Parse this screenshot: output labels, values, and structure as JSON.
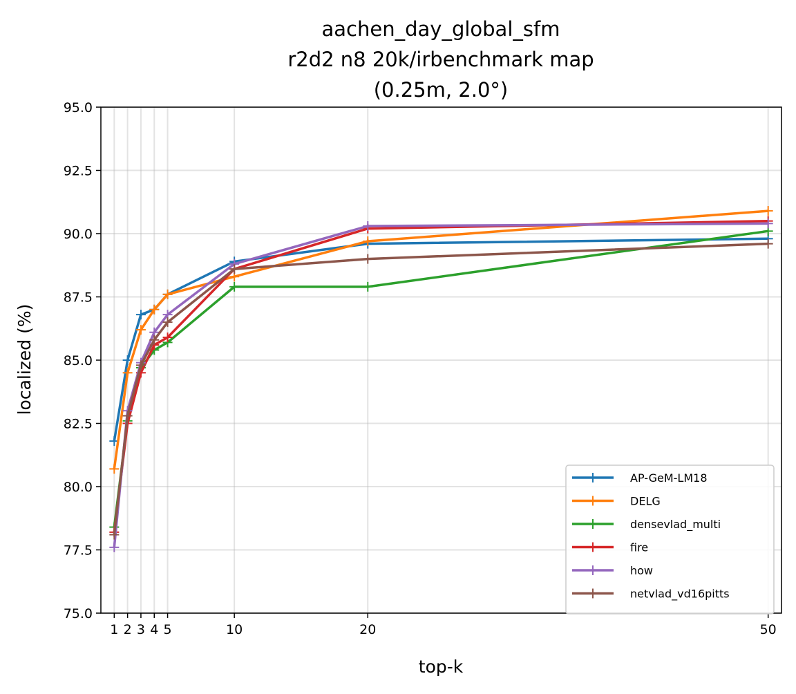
{
  "chart_data": {
    "type": "line",
    "title_lines": [
      "aachen_day_global_sfm",
      "r2d2 n8 20k/irbenchmark map",
      "(0.25m, 2.0°)"
    ],
    "xlabel": "top-k",
    "ylabel": "localized (%)",
    "x": [
      1,
      2,
      3,
      4,
      5,
      10,
      20,
      50
    ],
    "x_ticks": [
      {
        "value": 1,
        "label": "1"
      },
      {
        "value": 2,
        "label": "2"
      },
      {
        "value": 3,
        "label": "3"
      },
      {
        "value": 4,
        "label": "4"
      },
      {
        "value": 5,
        "label": "5"
      },
      {
        "value": 10,
        "label": "10"
      },
      {
        "value": 20,
        "label": "20"
      },
      {
        "value": 50,
        "label": "50"
      }
    ],
    "y_ticks": [
      {
        "value": 75.0,
        "label": "75.0"
      },
      {
        "value": 77.5,
        "label": "77.5"
      },
      {
        "value": 80.0,
        "label": "80.0"
      },
      {
        "value": 82.5,
        "label": "82.5"
      },
      {
        "value": 85.0,
        "label": "85.0"
      },
      {
        "value": 87.5,
        "label": "87.5"
      },
      {
        "value": 90.0,
        "label": "90.0"
      },
      {
        "value": 92.5,
        "label": "92.5"
      },
      {
        "value": 95.0,
        "label": "95.0"
      }
    ],
    "xlim": [
      0,
      51
    ],
    "ylim": [
      75,
      95
    ],
    "grid": true,
    "legend_position": "lower-right",
    "series": [
      {
        "name": "AP-GeM-LM18",
        "color": "#1f77b4",
        "values": [
          81.8,
          85.0,
          86.8,
          87.0,
          87.6,
          88.9,
          89.6,
          89.8
        ]
      },
      {
        "name": "DELG",
        "color": "#ff7f0e",
        "values": [
          80.7,
          84.5,
          86.2,
          87.0,
          87.6,
          88.3,
          89.7,
          90.9
        ]
      },
      {
        "name": "densevlad_multi",
        "color": "#2ca02c",
        "values": [
          78.4,
          82.6,
          84.7,
          85.4,
          85.7,
          87.9,
          87.9,
          90.1
        ]
      },
      {
        "name": "fire",
        "color": "#d62728",
        "values": [
          78.2,
          82.5,
          84.5,
          85.6,
          85.9,
          88.6,
          90.2,
          90.5
        ]
      },
      {
        "name": "how",
        "color": "#9467bd",
        "values": [
          77.6,
          83.0,
          84.9,
          86.1,
          86.8,
          88.8,
          90.3,
          90.4
        ]
      },
      {
        "name": "netvlad_vd16pitts",
        "color": "#8c564b",
        "values": [
          78.1,
          82.8,
          84.8,
          85.8,
          86.5,
          88.6,
          89.0,
          89.6
        ]
      }
    ]
  }
}
